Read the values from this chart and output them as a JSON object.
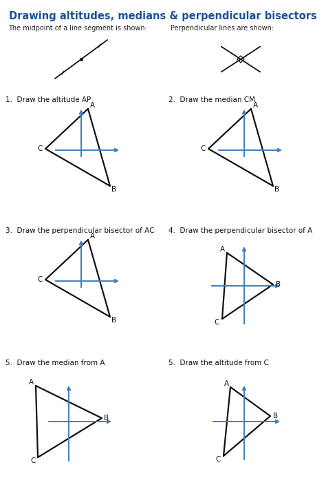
{
  "title": "Drawing altitudes, medians & perpendicular bisectors",
  "title_color": "#1a5296",
  "bg_color": "#ffffff",
  "subtitle1": "The midpoint of a line segment is shown:",
  "subtitle2": "Perpendicular lines are shown:",
  "problems": [
    {
      "label": "1.  Draw the altitude AP"
    },
    {
      "label": "2.  Draw the median CM"
    },
    {
      "label": "3.  Draw the perpendicular bisector of AC"
    },
    {
      "label": "4.  Draw the perpendicular bisector of A"
    },
    {
      "label": "5.  Draw the median from A"
    },
    {
      "label": "5.  Draw the altitude from C"
    }
  ],
  "axis_color": "#3a7fc1",
  "triangle_color": "#111111",
  "axis_lw": 1.4,
  "tri_lw": 1.6
}
